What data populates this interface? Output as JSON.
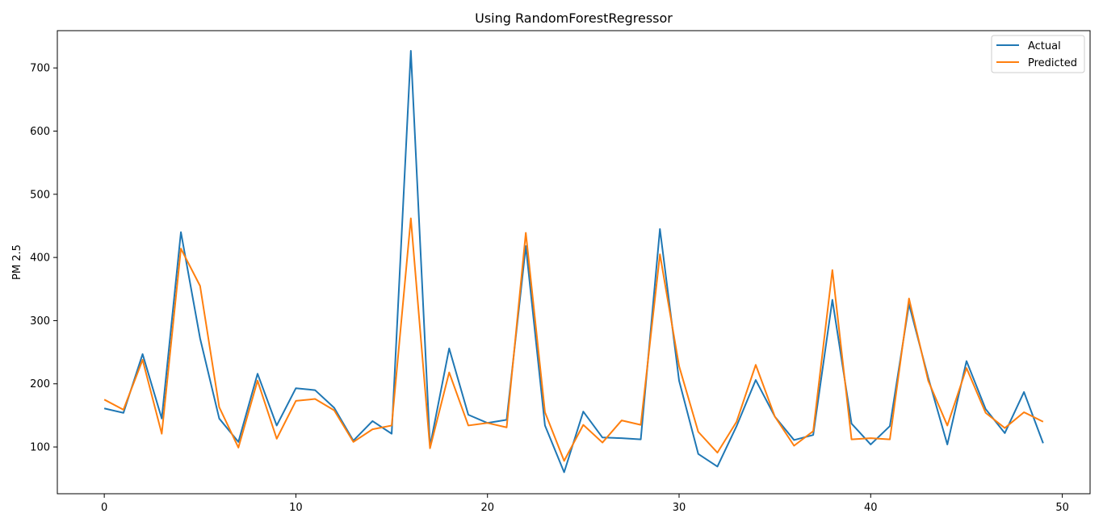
{
  "chart_data": {
    "type": "line",
    "title": "Using RandomForestRegressor",
    "xlabel": "",
    "ylabel": "PM 2.5",
    "xlim": [
      -2.45,
      51.45
    ],
    "ylim": [
      26,
      759
    ],
    "xticks": [
      0,
      10,
      20,
      30,
      40,
      50
    ],
    "yticks": [
      100,
      200,
      300,
      400,
      500,
      600,
      700
    ],
    "grid": false,
    "legend_position": "top-right",
    "x": [
      0,
      1,
      2,
      3,
      4,
      5,
      6,
      7,
      8,
      9,
      10,
      11,
      12,
      13,
      14,
      15,
      16,
      17,
      18,
      19,
      20,
      21,
      22,
      23,
      24,
      25,
      26,
      27,
      28,
      29,
      30,
      31,
      32,
      33,
      34,
      35,
      36,
      37,
      38,
      39,
      40,
      41,
      42,
      43,
      44,
      45,
      46,
      47,
      48,
      49
    ],
    "series": [
      {
        "name": "Actual",
        "color": "#1f77b4",
        "values": [
          161,
          154,
          247,
          145,
          440,
          272,
          145,
          108,
          216,
          134,
          193,
          190,
          162,
          110,
          141,
          121,
          727,
          101,
          256,
          151,
          138,
          143,
          418,
          134,
          60,
          156,
          115,
          114,
          112,
          445,
          205,
          89,
          69,
          133,
          206,
          148,
          111,
          119,
          333,
          137,
          104,
          133,
          326,
          210,
          104,
          236,
          160,
          122,
          187,
          106
        ]
      },
      {
        "name": "Predicted",
        "color": "#ff7f0e",
        "values": [
          175,
          159,
          238,
          121,
          414,
          355,
          163,
          99,
          205,
          113,
          173,
          176,
          158,
          108,
          128,
          134,
          462,
          98,
          218,
          134,
          138,
          131,
          439,
          155,
          78,
          135,
          107,
          142,
          135,
          405,
          228,
          124,
          91,
          140,
          230,
          148,
          102,
          125,
          380,
          112,
          114,
          112,
          335,
          205,
          134,
          225,
          154,
          130,
          155,
          140
        ]
      }
    ]
  }
}
